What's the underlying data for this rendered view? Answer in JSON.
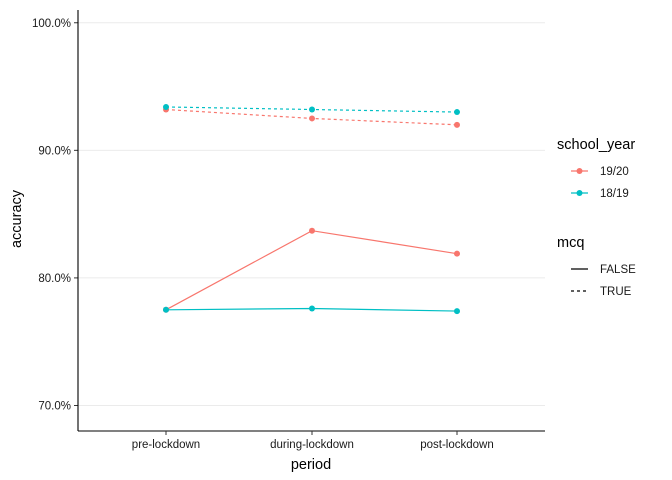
{
  "chart_data": {
    "type": "line",
    "xlabel": "period",
    "ylabel": "accuracy",
    "categories": [
      "pre-lockdown",
      "during-lockdown",
      "post-lockdown"
    ],
    "ylim": [
      0.68,
      1.01
    ],
    "yticks": [
      0.7,
      0.8,
      0.9,
      1.0
    ],
    "ytick_labels": [
      "70.0%",
      "80.0%",
      "90.0%",
      "100.0%"
    ],
    "grid": "horizontal",
    "legend_position": "right",
    "colors": {
      "19/20": "#F8766D",
      "18/19": "#00BFC4"
    },
    "legends": [
      {
        "title": "school_year",
        "kind": "color",
        "entries": [
          {
            "label": "19/20",
            "color": "#F8766D"
          },
          {
            "label": "18/19",
            "color": "#00BFC4"
          }
        ]
      },
      {
        "title": "mcq",
        "kind": "linetype",
        "entries": [
          {
            "label": "FALSE",
            "dash": "solid"
          },
          {
            "label": "TRUE",
            "dash": "dashed"
          }
        ]
      }
    ],
    "series": [
      {
        "school_year": "19/20",
        "mcq": "FALSE",
        "values": [
          0.775,
          0.837,
          0.819
        ]
      },
      {
        "school_year": "18/19",
        "mcq": "FALSE",
        "values": [
          0.775,
          0.776,
          0.774
        ]
      },
      {
        "school_year": "19/20",
        "mcq": "TRUE",
        "values": [
          0.932,
          0.925,
          0.92
        ]
      },
      {
        "school_year": "18/19",
        "mcq": "TRUE",
        "values": [
          0.934,
          0.932,
          0.93
        ]
      }
    ]
  }
}
